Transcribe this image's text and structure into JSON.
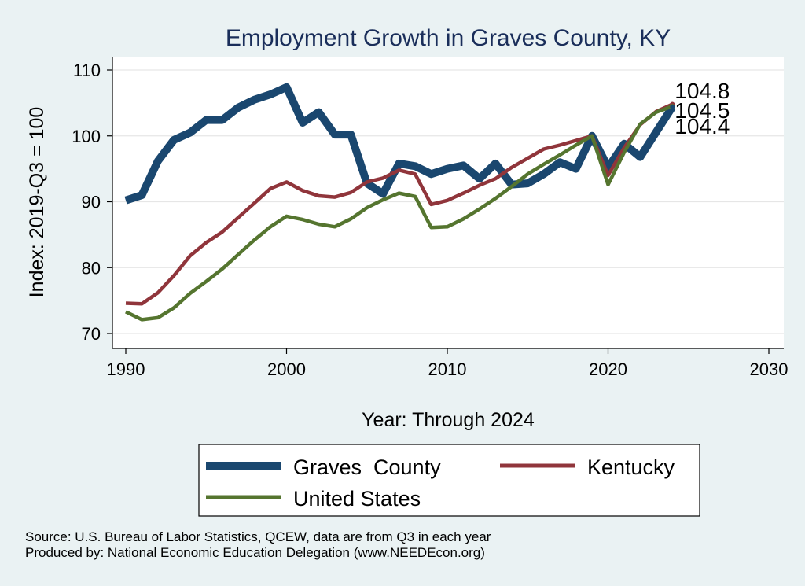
{
  "chart_data": {
    "type": "line",
    "title": "Employment Growth in Graves County, KY",
    "xlabel": "Year: Through 2024",
    "ylabel": "Index: 2019-Q3 = 100",
    "xlim": [
      1990,
      2030
    ],
    "ylim": [
      70,
      110
    ],
    "xticks": [
      1990,
      2000,
      2010,
      2020,
      2030
    ],
    "yticks": [
      70,
      80,
      90,
      100,
      110
    ],
    "grid": true,
    "legend": "bottom",
    "x": [
      1990,
      1991,
      1992,
      1993,
      1994,
      1995,
      1996,
      1997,
      1998,
      1999,
      2000,
      2001,
      2002,
      2003,
      2004,
      2005,
      2006,
      2007,
      2008,
      2009,
      2010,
      2011,
      2012,
      2013,
      2014,
      2015,
      2016,
      2017,
      2018,
      2019,
      2020,
      2021,
      2022,
      2023,
      2024
    ],
    "series": [
      {
        "name": "Graves  County",
        "color": "#1a476f",
        "values": [
          90.2,
          91.0,
          96.2,
          99.4,
          100.5,
          102.4,
          102.4,
          104.3,
          105.5,
          106.3,
          107.4,
          102.0,
          103.6,
          100.2,
          100.2,
          92.8,
          91.2,
          95.8,
          95.4,
          94.2,
          95.0,
          95.5,
          93.5,
          95.8,
          92.6,
          92.8,
          94.2,
          96.0,
          95.0,
          100.0,
          95.2,
          98.8,
          96.8,
          100.6,
          104.4
        ],
        "end_label": "104.4"
      },
      {
        "name": "Kentucky",
        "color": "#90353b",
        "values": [
          74.6,
          74.5,
          76.2,
          78.8,
          81.8,
          83.8,
          85.4,
          87.6,
          89.8,
          92.0,
          93.0,
          91.7,
          90.9,
          90.7,
          91.4,
          93.0,
          93.6,
          94.8,
          94.2,
          89.6,
          90.2,
          91.3,
          92.5,
          93.5,
          95.2,
          96.6,
          98.0,
          98.6,
          99.3,
          100.0,
          94.0,
          98.2,
          101.7,
          103.7,
          104.8
        ],
        "end_label": "104.8"
      },
      {
        "name": "United States",
        "color": "#55752f",
        "values": [
          73.3,
          72.1,
          72.4,
          73.9,
          76.1,
          77.9,
          79.8,
          82.0,
          84.2,
          86.2,
          87.8,
          87.3,
          86.6,
          86.2,
          87.4,
          89.1,
          90.3,
          91.3,
          90.8,
          86.1,
          86.2,
          87.4,
          88.9,
          90.5,
          92.3,
          94.2,
          95.7,
          97.1,
          98.6,
          100.0,
          92.6,
          97.5,
          101.8,
          103.6,
          104.5
        ],
        "end_label": "104.5"
      }
    ]
  },
  "notes": {
    "source": "Source: U.S. Bureau of Labor Statistics, QCEW, data are from Q3 in each year",
    "produced_by": "Produced by: National Economic Education Delegation (www.NEEDEcon.org)"
  }
}
